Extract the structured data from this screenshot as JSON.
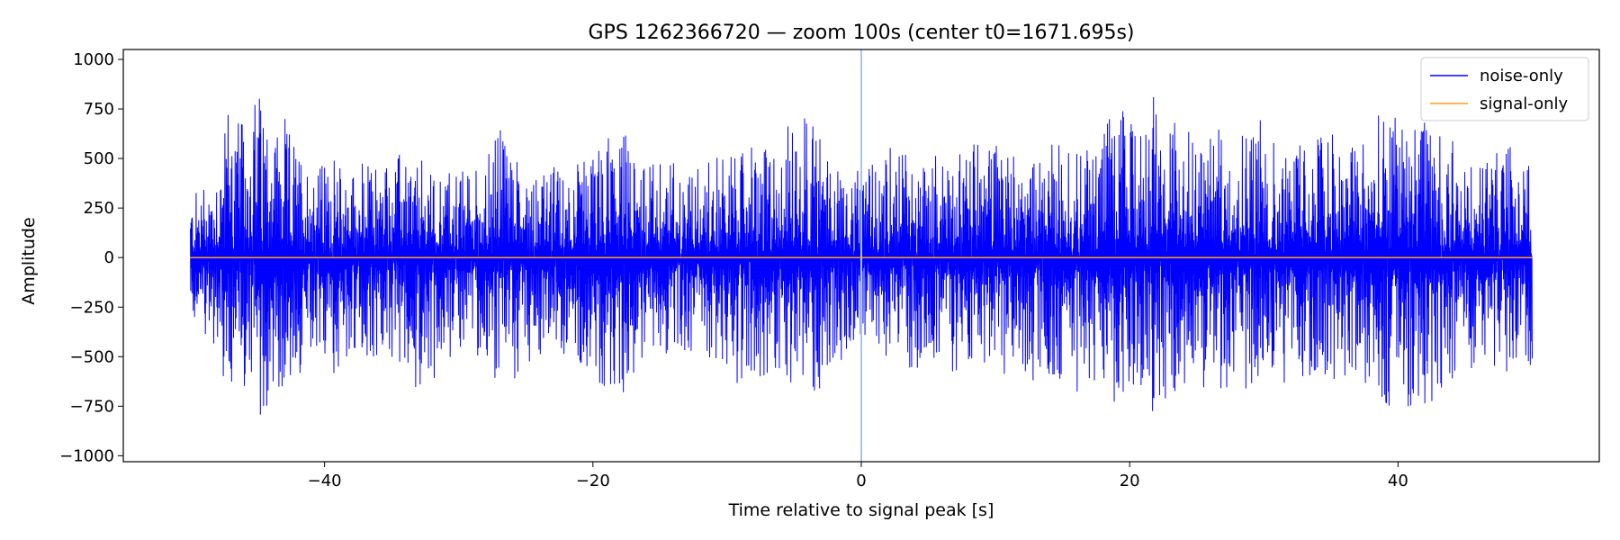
{
  "chart_data": {
    "type": "line",
    "title": "GPS 1262366720 — zoom 100s (center t0=1671.695s)",
    "xlabel": "Time relative to signal peak [s]",
    "ylabel": "Amplitude",
    "xlim": [
      -55,
      55
    ],
    "ylim": [
      -1030,
      1050
    ],
    "xticks": [
      -40,
      -20,
      0,
      20,
      40
    ],
    "xtick_labels": [
      "−40",
      "−20",
      "0",
      "20",
      "40"
    ],
    "yticks": [
      -1000,
      -750,
      -500,
      -250,
      0,
      250,
      500,
      750,
      1000
    ],
    "ytick_labels": [
      "−1000",
      "−750",
      "−500",
      "−250",
      "0",
      "250",
      "500",
      "750",
      "1000"
    ],
    "grid": false,
    "legend": "top-right",
    "vline": {
      "x": 0,
      "color": "#a6c8e6"
    },
    "series": [
      {
        "name": "noise-only",
        "color": "#0000ff",
        "x_range": [
          -50,
          50
        ],
        "envelope_x": [
          -50,
          -48,
          -47,
          -46.3,
          -45,
          -42,
          -40,
          -37,
          -34,
          -33,
          -30,
          -28,
          -27,
          -25,
          -22,
          -18,
          -16,
          -12,
          -8,
          -6,
          -4.5,
          -2,
          0,
          2,
          5,
          8,
          10,
          13,
          15,
          17,
          18.5,
          20.5,
          22,
          22.5,
          25,
          27,
          28,
          31,
          33,
          35,
          37,
          39.5,
          40.5,
          42,
          45,
          48,
          50
        ],
        "envelope_upper": [
          330,
          520,
          950,
          700,
          940,
          610,
          520,
          500,
          580,
          510,
          480,
          500,
          770,
          520,
          480,
          700,
          540,
          520,
          620,
          590,
          880,
          580,
          420,
          630,
          540,
          600,
          700,
          550,
          650,
          590,
          790,
          750,
          910,
          850,
          700,
          680,
          820,
          690,
          660,
          700,
          640,
          770,
          860,
          780,
          560,
          580,
          560
        ],
        "envelope_lower": [
          -320,
          -500,
          -880,
          -650,
          -930,
          -640,
          -620,
          -560,
          -570,
          -740,
          -480,
          -550,
          -760,
          -560,
          -510,
          -780,
          -560,
          -550,
          -700,
          -660,
          -850,
          -580,
          -500,
          -640,
          -590,
          -600,
          -620,
          -660,
          -720,
          -730,
          -780,
          -800,
          -880,
          -860,
          -760,
          -700,
          -750,
          -690,
          -680,
          -700,
          -680,
          -840,
          -870,
          -780,
          -580,
          -600,
          -600
        ]
      },
      {
        "name": "signal-only",
        "color": "#ff9e1b",
        "x": [
          -50,
          50
        ],
        "y": [
          0,
          0
        ]
      }
    ]
  }
}
